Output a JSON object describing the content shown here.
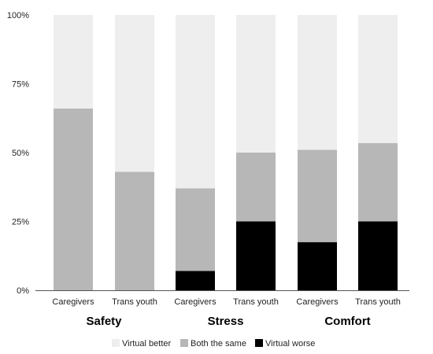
{
  "chart_data": {
    "type": "bar",
    "stacked": true,
    "categories": [
      "Caregivers",
      "Trans youth",
      "Caregivers",
      "Trans youth",
      "Caregivers",
      "Trans youth"
    ],
    "groups": [
      {
        "label": "Safety",
        "members": [
          0,
          1
        ]
      },
      {
        "label": "Stress",
        "members": [
          2,
          3
        ]
      },
      {
        "label": "Comfort",
        "members": [
          4,
          5
        ]
      }
    ],
    "series": [
      {
        "name": "Virtual worse",
        "color": "#000000",
        "values": [
          0,
          0,
          7,
          25,
          17.5,
          25
        ]
      },
      {
        "name": "Both the same",
        "color": "#b7b7b7",
        "values": [
          66,
          43,
          30,
          25,
          33.5,
          28.5
        ]
      },
      {
        "name": "Virtual better",
        "color": "#eeeeee",
        "values": [
          34,
          57,
          63,
          50,
          49,
          46.5
        ]
      }
    ],
    "legend_order": [
      2,
      1,
      0
    ],
    "yticks": [
      "0%",
      "25%",
      "50%",
      "75%",
      "100%"
    ],
    "ylim": [
      0,
      100
    ],
    "title": "",
    "xlabel": "",
    "ylabel": "",
    "legend_position": "bottom",
    "grid": false
  }
}
